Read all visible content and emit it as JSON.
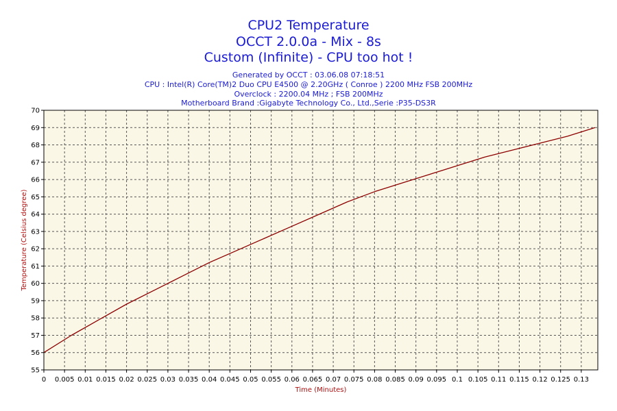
{
  "header": {
    "title_line1": "CPU2 Temperature",
    "title_line2": "OCCT 2.0.0a - Mix - 8s",
    "title_line3": "Custom (Infinite) - CPU too hot !",
    "generated": "Generated by OCCT : 03.06.08 07:18:51",
    "cpu": "CPU : Intel(R) Core(TM)2 Duo CPU E4500 @ 2.20GHz ( Conroe ) 2200 MHz FSB 200MHz",
    "overclock": "Overclock : 2200.04 MHz ; FSB 200MHz",
    "motherboard": "Motherboard Brand :Gigabyte Technology Co., Ltd.,Serie :P35-DS3R"
  },
  "colors": {
    "title": "#1a1ad2",
    "plot_background": "#fbf7e6",
    "grid": "#555555",
    "line": "#8b0000",
    "axis_title": "#b01010"
  },
  "chart_data": {
    "type": "line",
    "xlabel": "Time (Minutes)",
    "ylabel": "Temperature (Celsius degree)",
    "xlim": [
      0,
      0.134
    ],
    "ylim": [
      55,
      70
    ],
    "grid": true,
    "x_ticks": [
      "0",
      "0.005",
      "0.01",
      "0.015",
      "0.02",
      "0.025",
      "0.03",
      "0.035",
      "0.04",
      "0.045",
      "0.05",
      "0.055",
      "0.06",
      "0.065",
      "0.07",
      "0.075",
      "0.08",
      "0.085",
      "0.09",
      "0.095",
      "0.1",
      "0.105",
      "0.11",
      "0.115",
      "0.12",
      "0.125",
      "0.13"
    ],
    "y_ticks": [
      "55",
      "56",
      "57",
      "58",
      "59",
      "60",
      "61",
      "62",
      "63",
      "64",
      "65",
      "66",
      "67",
      "68",
      "69",
      "70"
    ],
    "series": [
      {
        "x": [
          0,
          0.00667,
          0.01333,
          0.02,
          0.02667,
          0.03333,
          0.04,
          0.04667,
          0.05333,
          0.06,
          0.06667,
          0.07333,
          0.08,
          0.08667,
          0.09333,
          0.1,
          0.10667,
          0.11333,
          0.12,
          0.12667,
          0.13333
        ],
        "values": [
          56,
          57,
          57.9,
          58.8,
          59.6,
          60.4,
          61.2,
          61.9,
          62.6,
          63.3,
          64,
          64.7,
          65.3,
          65.8,
          66.3,
          66.8,
          67.3,
          67.7,
          68.1,
          68.5,
          69
        ]
      }
    ]
  }
}
